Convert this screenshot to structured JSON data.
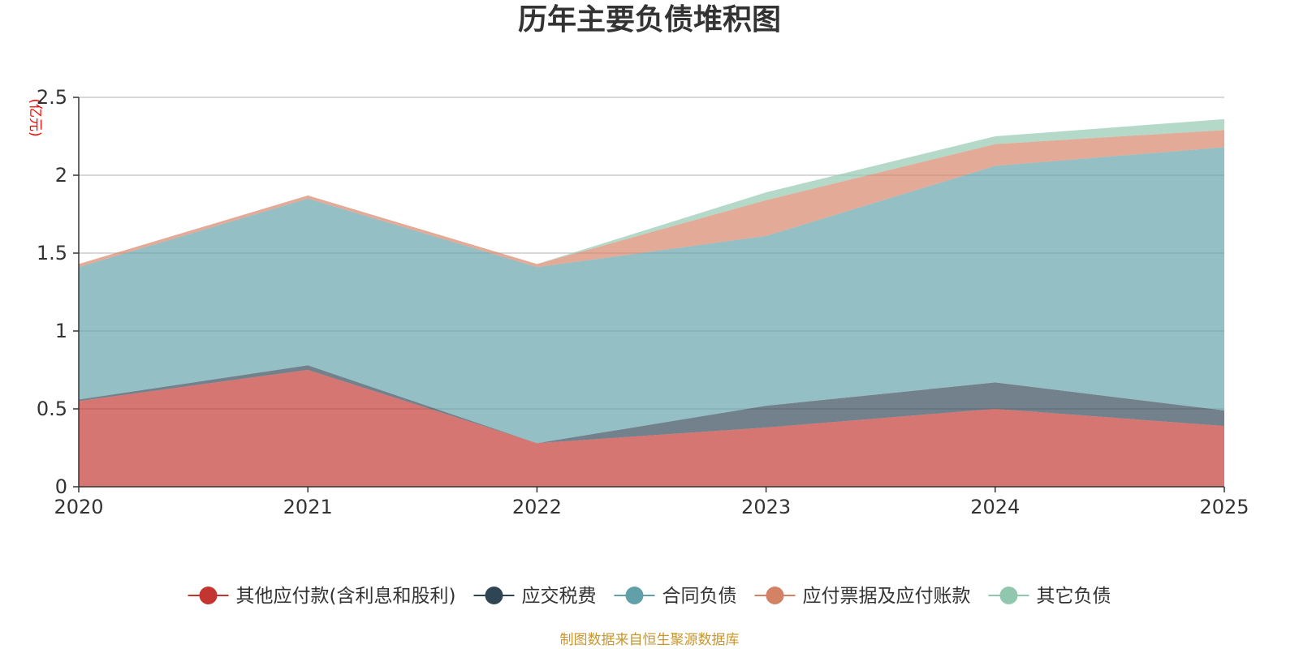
{
  "chart_data": {
    "type": "area",
    "stacked": true,
    "title": "历年主要负债堆积图",
    "unit_label": "(亿元)",
    "x": [
      "2020",
      "2021",
      "2022",
      "2023",
      "2024",
      "2025"
    ],
    "ylim": [
      0,
      2.5
    ],
    "yticks": [
      "0",
      "0.5",
      "1",
      "1.5",
      "2",
      "2.5"
    ],
    "ytick_values": [
      0,
      0.5,
      1,
      1.5,
      2,
      2.5
    ],
    "grid": true,
    "legend_position": "bottom",
    "series": [
      {
        "name": "其他应付款(含利息和股利)",
        "color": "#c23531",
        "values": [
          0.55,
          0.75,
          0.28,
          0.38,
          0.5,
          0.39
        ]
      },
      {
        "name": "应交税费",
        "color": "#2f4554",
        "values": [
          0.01,
          0.03,
          0.0,
          0.14,
          0.17,
          0.1
        ]
      },
      {
        "name": "合同负债",
        "color": "#61a0a8",
        "values": [
          0.85,
          1.07,
          1.13,
          1.09,
          1.39,
          1.69
        ]
      },
      {
        "name": "应付票据及应付账款",
        "color": "#d48265",
        "values": [
          0.02,
          0.02,
          0.02,
          0.23,
          0.14,
          0.11
        ]
      },
      {
        "name": "其它负债",
        "color": "#91c7ae",
        "values": [
          0.0,
          0.0,
          0.0,
          0.05,
          0.05,
          0.07
        ]
      }
    ],
    "source": "制图数据来自恒生聚源数据库",
    "colors": {
      "unit": "#ff0000",
      "source": "#c8962e",
      "grid": "#cccccc",
      "axis": "#333333"
    }
  }
}
